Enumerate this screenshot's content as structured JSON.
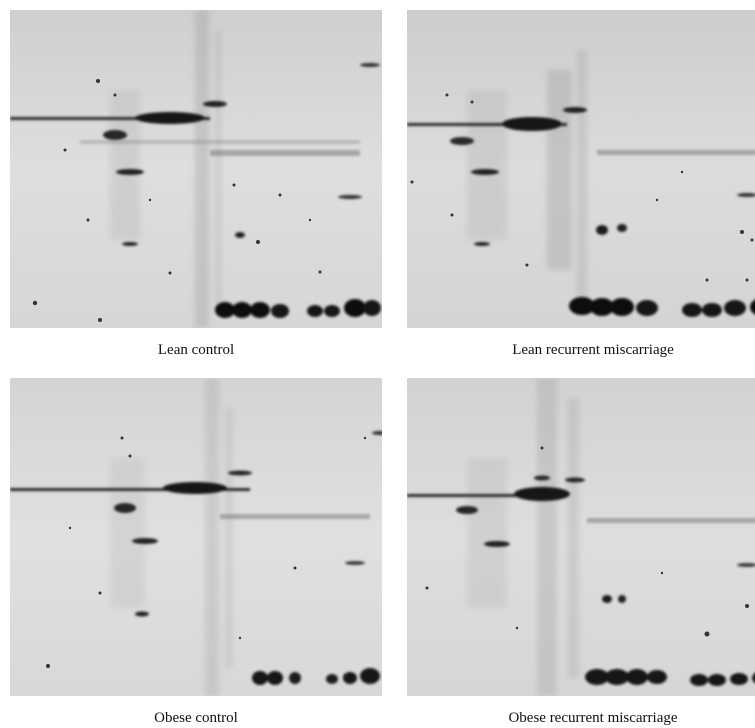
{
  "figure": {
    "panels": [
      {
        "caption": "Lean control"
      },
      {
        "caption": "Lean recurrent miscarriage"
      },
      {
        "caption": "Obese control"
      },
      {
        "caption": "Obese recurrent miscarriage"
      }
    ]
  },
  "colors": {
    "gel_background": "#d9d9d9",
    "spot_dark": "#1a1a1a",
    "caption_text": "#111111"
  }
}
